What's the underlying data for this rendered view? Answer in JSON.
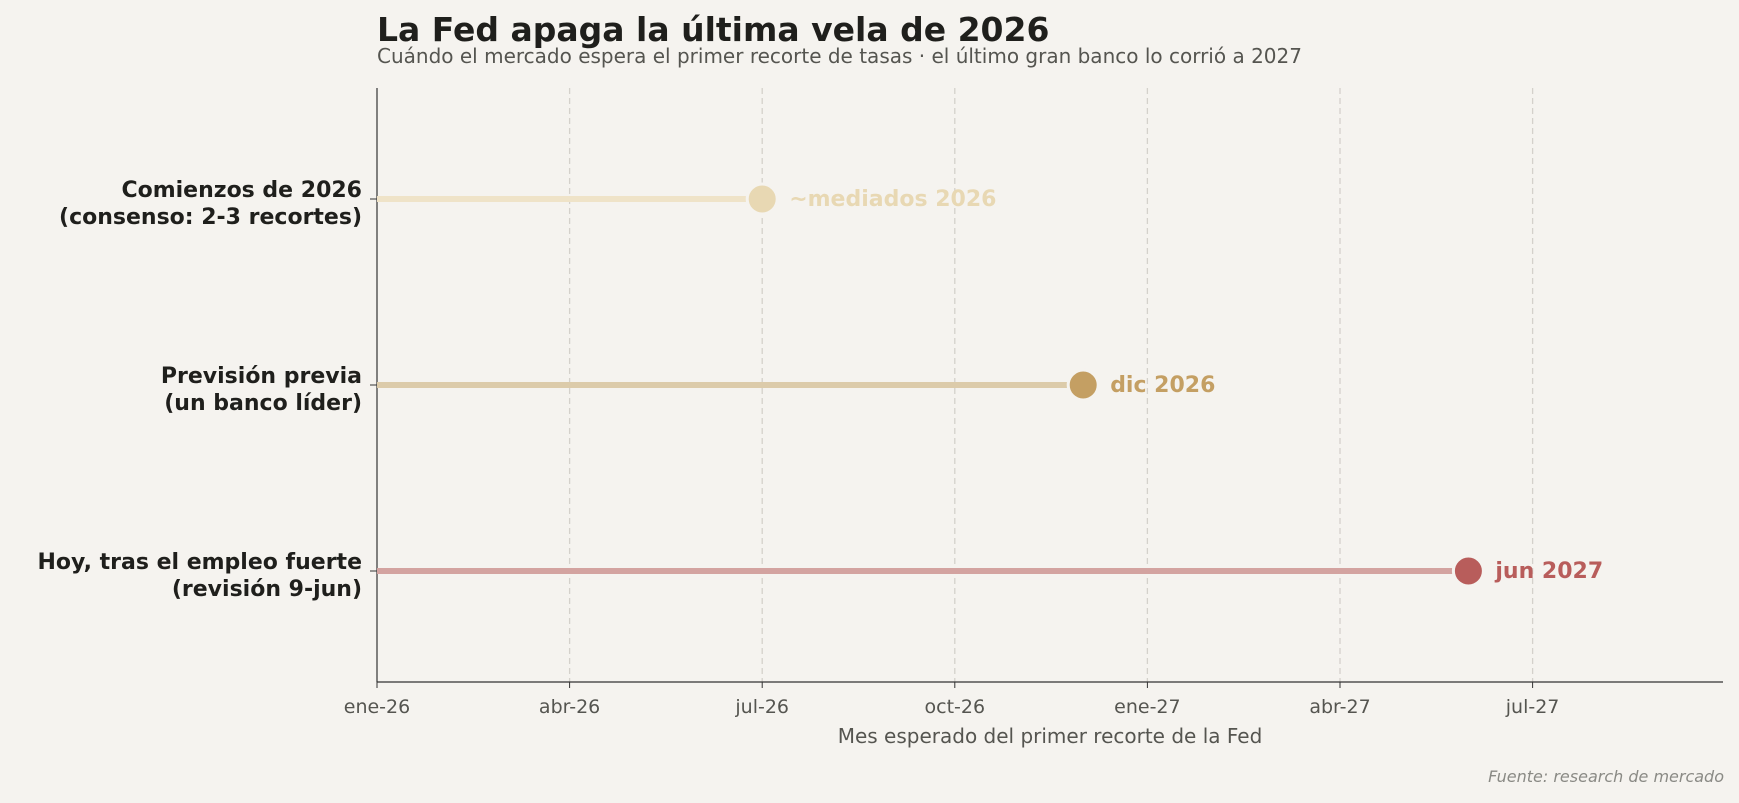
{
  "chart_data": {
    "type": "dot-range",
    "title": "La Fed apaga la última vela de 2026",
    "subtitle": "Cuándo el mercado espera el primer recorte de tasas · el último gran banco lo corrió a 2027",
    "xlabel": "Mes esperado del primer recorte de la Fed",
    "x_axis": {
      "type": "date",
      "range": [
        "2026-01",
        "2027-10"
      ],
      "tick_labels": [
        "ene-26",
        "abr-26",
        "jul-26",
        "oct-26",
        "ene-27",
        "abr-27",
        "jul-27"
      ],
      "tick_values": [
        "2026-01",
        "2026-04",
        "2026-07",
        "2026-10",
        "2027-01",
        "2027-04",
        "2027-07"
      ],
      "grid": "vertical dashed"
    },
    "rows": [
      {
        "label_line1": "Comienzos de 2026",
        "label_line2": "(consenso: 2-3 recortes)",
        "value": "2026-07",
        "value_label": "~mediados 2026",
        "dot_color": "#e8d8b3",
        "line_color": "#efe3c8",
        "label_color": "#e8d8b3"
      },
      {
        "label_line1": "Previsión previa",
        "label_line2": "(un banco líder)",
        "value": "2026-12",
        "value_label": "dic 2026",
        "dot_color": "#c49f63",
        "line_color": "#dccbaa",
        "label_color": "#c49f63"
      },
      {
        "label_line1": "Hoy, tras el empleo fuerte",
        "label_line2": "(revisión 9-jun)",
        "value": "2027-06",
        "value_label": "jun 2027",
        "dot_color": "#b85d5b",
        "line_color": "#d3a3a0",
        "label_color": "#b85d5b"
      }
    ]
  },
  "source": "Fuente: research de mercado"
}
